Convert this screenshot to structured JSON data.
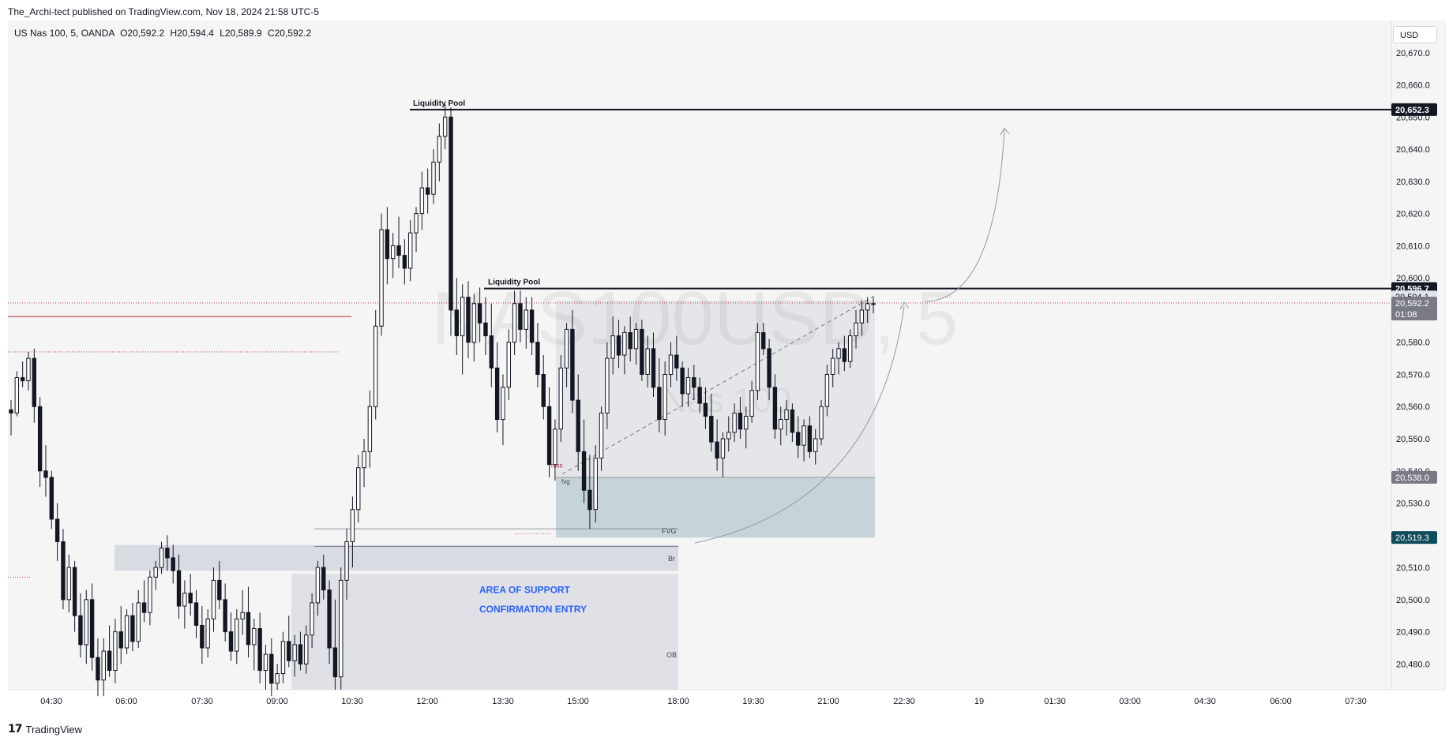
{
  "header": {
    "published_by": "The_Archi-tect published on TradingView.com, Nov 18, 2024 21:58 UTC-5"
  },
  "legend": {
    "symbol": "US Nas 100, 5, OANDA",
    "open": "O20,592.2",
    "high": "H20,594.4",
    "low": "L20,589.9",
    "close": "C20,592.2"
  },
  "currency": "USD",
  "watermark": {
    "symbol": "NAS100USD, 5",
    "name": "Nas 100"
  },
  "footer": {
    "brand": "TradingView",
    "logo_mark": "17"
  },
  "colors": {
    "bull": "#131722",
    "bear": "#131722",
    "level_line": "#131722",
    "red_line": "#b22833",
    "zone_gray": "#d1d4dc",
    "fvg_zone": "#b2c6cf",
    "support_text": "#2962ff",
    "price_axis_bg": "#f5f5f5"
  },
  "chart_data": {
    "type": "candlestick",
    "symbol": "US Nas 100",
    "interval": "5",
    "exchange": "OANDA",
    "ylim": [
      20472,
      20680
    ],
    "y_ticks": [
      "20,480.0",
      "20,490.0",
      "20,500.0",
      "20,510.0",
      "20,520.0",
      "20,530.0",
      "20,540.0",
      "20,550.0",
      "20,560.0",
      "20,570.0",
      "20,580.0",
      "20,590.0",
      "20,600.0",
      "20,610.0",
      "20,620.0",
      "20,630.0",
      "20,640.0",
      "20,650.0",
      "20,660.0",
      "20,670.0"
    ],
    "y_tick_values": [
      20480,
      20490,
      20500,
      20510,
      20520,
      20530,
      20540,
      20550,
      20560,
      20570,
      20580,
      20590,
      20600,
      20610,
      20620,
      20630,
      20640,
      20650,
      20660,
      20670
    ],
    "x_ticks": [
      "04:30",
      "06:00",
      "07:30",
      "09:00",
      "10:30",
      "12:00",
      "13:30",
      "15:00",
      "18:00",
      "19:30",
      "21:00",
      "22:30",
      "19",
      "01:30",
      "03:00",
      "04:30",
      "06:00",
      "07:30"
    ],
    "price_labels": [
      {
        "text": "20,652.3",
        "value": 20652.3,
        "style": "black"
      },
      {
        "text": "20,596.7",
        "value": 20596.7,
        "style": "black"
      },
      {
        "text": "20,594.1",
        "value": 20594.1,
        "style": "light"
      },
      {
        "text": "20,592.2",
        "value": 20592.2,
        "style": "gray",
        "countdown": "01:08"
      },
      {
        "text": "20,538.0",
        "value": 20538.0,
        "style": "gray"
      },
      {
        "text": "20,519.3",
        "value": 20519.3,
        "style": "teal"
      }
    ],
    "levels": [
      {
        "label": "Liquidity Pool",
        "value": 20652.3
      },
      {
        "label": "Liquidity Pool",
        "value": 20596.7
      }
    ],
    "annotations": {
      "fvg": "FVG",
      "br": "Br",
      "ob": "OB",
      "area_of_support": "AREA OF SUPPORT",
      "confirmation_entry": "CONFIRMATION ENTRY",
      "mss": "mss",
      "small_fvg": "fvg"
    },
    "candles": [
      [
        20559,
        20562,
        20551,
        20558
      ],
      [
        20558,
        20571,
        20557,
        20569
      ],
      [
        20569,
        20574,
        20566,
        20568
      ],
      [
        20568,
        20577,
        20565,
        20575
      ],
      [
        20575,
        20578,
        20555,
        20560
      ],
      [
        20560,
        20563,
        20535,
        20540
      ],
      [
        20540,
        20548,
        20532,
        20538
      ],
      [
        20538,
        20540,
        20522,
        20525
      ],
      [
        20525,
        20530,
        20512,
        20518
      ],
      [
        20518,
        20522,
        20497,
        20500
      ],
      [
        20500,
        20514,
        20496,
        20510
      ],
      [
        20510,
        20512,
        20490,
        20495
      ],
      [
        20495,
        20502,
        20482,
        20486
      ],
      [
        20486,
        20503,
        20480,
        20500
      ],
      [
        20500,
        20505,
        20478,
        20482
      ],
      [
        20482,
        20488,
        20470,
        20475
      ],
      [
        20475,
        20488,
        20470,
        20484
      ],
      [
        20484,
        20492,
        20476,
        20478
      ],
      [
        20478,
        20494,
        20474,
        20490
      ],
      [
        20490,
        20498,
        20480,
        20485
      ],
      [
        20485,
        20497,
        20483,
        20495
      ],
      [
        20495,
        20499,
        20484,
        20487
      ],
      [
        20487,
        20503,
        20485,
        20499
      ],
      [
        20499,
        20506,
        20493,
        20496
      ],
      [
        20496,
        20509,
        20492,
        20507
      ],
      [
        20507,
        20512,
        20503,
        20510
      ],
      [
        20510,
        20518,
        20508,
        20516
      ],
      [
        20516,
        20520,
        20509,
        20513
      ],
      [
        20513,
        20517,
        20505,
        20509
      ],
      [
        20509,
        20514,
        20494,
        20498
      ],
      [
        20498,
        20506,
        20491,
        20502
      ],
      [
        20502,
        20508,
        20495,
        20499
      ],
      [
        20499,
        20503,
        20488,
        20492
      ],
      [
        20492,
        20498,
        20480,
        20485
      ],
      [
        20485,
        20497,
        20482,
        20494
      ],
      [
        20494,
        20510,
        20490,
        20506
      ],
      [
        20506,
        20512,
        20497,
        20500
      ],
      [
        20500,
        20505,
        20487,
        20490
      ],
      [
        20490,
        20496,
        20481,
        20484
      ],
      [
        20484,
        20497,
        20480,
        20494
      ],
      [
        20494,
        20503,
        20489,
        20496
      ],
      [
        20496,
        20504,
        20482,
        20486
      ],
      [
        20486,
        20494,
        20478,
        20491
      ],
      [
        20491,
        20496,
        20474,
        20478
      ],
      [
        20478,
        20486,
        20472,
        20483
      ],
      [
        20483,
        20488,
        20470,
        20474
      ],
      [
        20474,
        20480,
        20472,
        20477
      ],
      [
        20477,
        20490,
        20474,
        20487
      ],
      [
        20487,
        20495,
        20479,
        20481
      ],
      [
        20481,
        20489,
        20476,
        20486
      ],
      [
        20486,
        20490,
        20478,
        20480
      ],
      [
        20480,
        20492,
        20477,
        20489
      ],
      [
        20489,
        20502,
        20485,
        20499
      ],
      [
        20499,
        20512,
        20495,
        20510
      ],
      [
        20510,
        20514,
        20500,
        20503
      ],
      [
        20503,
        20506,
        20480,
        20485
      ],
      [
        20485,
        20500,
        20472,
        20476
      ],
      [
        20476,
        20510,
        20472,
        20506
      ],
      [
        20506,
        20522,
        20500,
        20518
      ],
      [
        20518,
        20532,
        20510,
        20528
      ],
      [
        20528,
        20545,
        20524,
        20541
      ],
      [
        20541,
        20550,
        20535,
        20546
      ],
      [
        20546,
        20565,
        20541,
        20560
      ],
      [
        20560,
        20590,
        20556,
        20585
      ],
      [
        20585,
        20620,
        20582,
        20615
      ],
      [
        20615,
        20622,
        20598,
        20606
      ],
      [
        20606,
        20614,
        20600,
        20610
      ],
      [
        20610,
        20619,
        20603,
        20607
      ],
      [
        20607,
        20612,
        20598,
        20603
      ],
      [
        20603,
        20618,
        20599,
        20614
      ],
      [
        20614,
        20622,
        20608,
        20620
      ],
      [
        20620,
        20633,
        20615,
        20628
      ],
      [
        20628,
        20634,
        20620,
        20626
      ],
      [
        20626,
        20640,
        20623,
        20636
      ],
      [
        20636,
        20648,
        20630,
        20644
      ],
      [
        20644,
        20654,
        20640,
        20650
      ],
      [
        20650,
        20653,
        20582,
        20590
      ],
      [
        20590,
        20600,
        20576,
        20582
      ],
      [
        20582,
        20598,
        20570,
        20594
      ],
      [
        20594,
        20599,
        20575,
        20580
      ],
      [
        20580,
        20595,
        20574,
        20592
      ],
      [
        20592,
        20597,
        20580,
        20586
      ],
      [
        20586,
        20594,
        20576,
        20582
      ],
      [
        20582,
        20592,
        20566,
        20572
      ],
      [
        20572,
        20580,
        20552,
        20556
      ],
      [
        20556,
        20570,
        20548,
        20566
      ],
      [
        20566,
        20584,
        20562,
        20580
      ],
      [
        20580,
        20596,
        20576,
        20592
      ],
      [
        20592,
        20596,
        20580,
        20584
      ],
      [
        20584,
        20594,
        20578,
        20590
      ],
      [
        20590,
        20594,
        20576,
        20580
      ],
      [
        20580,
        20586,
        20566,
        20570
      ],
      [
        20570,
        20576,
        20556,
        20560
      ],
      [
        20560,
        20566,
        20538,
        20542
      ],
      [
        20542,
        20556,
        20537,
        20553
      ],
      [
        20553,
        20576,
        20549,
        20572
      ],
      [
        20572,
        20586,
        20566,
        20584
      ],
      [
        20584,
        20590,
        20558,
        20562
      ],
      [
        20562,
        20570,
        20540,
        20546
      ],
      [
        20546,
        20556,
        20530,
        20534
      ],
      [
        20534,
        20545,
        20522,
        20528
      ],
      [
        20528,
        20548,
        20524,
        20544
      ],
      [
        20544,
        20560,
        20540,
        20558
      ],
      [
        20558,
        20580,
        20553,
        20575
      ],
      [
        20575,
        20588,
        20570,
        20582
      ],
      [
        20582,
        20587,
        20572,
        20576
      ],
      [
        20576,
        20585,
        20570,
        20583
      ],
      [
        20583,
        20588,
        20574,
        20578
      ],
      [
        20578,
        20586,
        20573,
        20584
      ],
      [
        20584,
        20587,
        20568,
        20570
      ],
      [
        20570,
        20582,
        20566,
        20578
      ],
      [
        20578,
        20583,
        20563,
        20566
      ],
      [
        20566,
        20575,
        20552,
        20556
      ],
      [
        20556,
        20574,
        20551,
        20570
      ],
      [
        20570,
        20580,
        20566,
        20576
      ],
      [
        20576,
        20582,
        20568,
        20572
      ],
      [
        20572,
        20574,
        20560,
        20564
      ],
      [
        20564,
        20572,
        20560,
        20569
      ],
      [
        20569,
        20573,
        20562,
        20566
      ],
      [
        20566,
        20569,
        20558,
        20561
      ],
      [
        20561,
        20566,
        20553,
        20557
      ],
      [
        20557,
        20564,
        20546,
        20549
      ],
      [
        20549,
        20556,
        20540,
        20544
      ],
      [
        20544,
        20552,
        20538,
        20550
      ],
      [
        20550,
        20557,
        20546,
        20552
      ],
      [
        20552,
        20561,
        20549,
        20558
      ],
      [
        20558,
        20563,
        20550,
        20553
      ],
      [
        20553,
        20560,
        20547,
        20557
      ],
      [
        20557,
        20568,
        20555,
        20565
      ],
      [
        20565,
        20586,
        20562,
        20583
      ],
      [
        20583,
        20586,
        20576,
        20578
      ],
      [
        20578,
        20581,
        20562,
        20566
      ],
      [
        20566,
        20570,
        20550,
        20553
      ],
      [
        20553,
        20560,
        20548,
        20556
      ],
      [
        20556,
        20562,
        20551,
        20559
      ],
      [
        20559,
        20561,
        20549,
        20552
      ],
      [
        20552,
        20557,
        20544,
        20548
      ],
      [
        20548,
        20556,
        20543,
        20554
      ],
      [
        20554,
        20557,
        20544,
        20546
      ],
      [
        20546,
        20553,
        20542,
        20550
      ],
      [
        20550,
        20562,
        20548,
        20560
      ],
      [
        20560,
        20573,
        20557,
        20570
      ],
      [
        20570,
        20578,
        20566,
        20575
      ],
      [
        20575,
        20580,
        20570,
        20578
      ],
      [
        20578,
        20582,
        20571,
        20574
      ],
      [
        20574,
        20584,
        20572,
        20582
      ],
      [
        20582,
        20590,
        20578,
        20586
      ],
      [
        20586,
        20593,
        20582,
        20590
      ],
      [
        20590,
        20594,
        20586,
        20592
      ],
      [
        20592,
        20594,
        20589,
        20592
      ]
    ]
  }
}
